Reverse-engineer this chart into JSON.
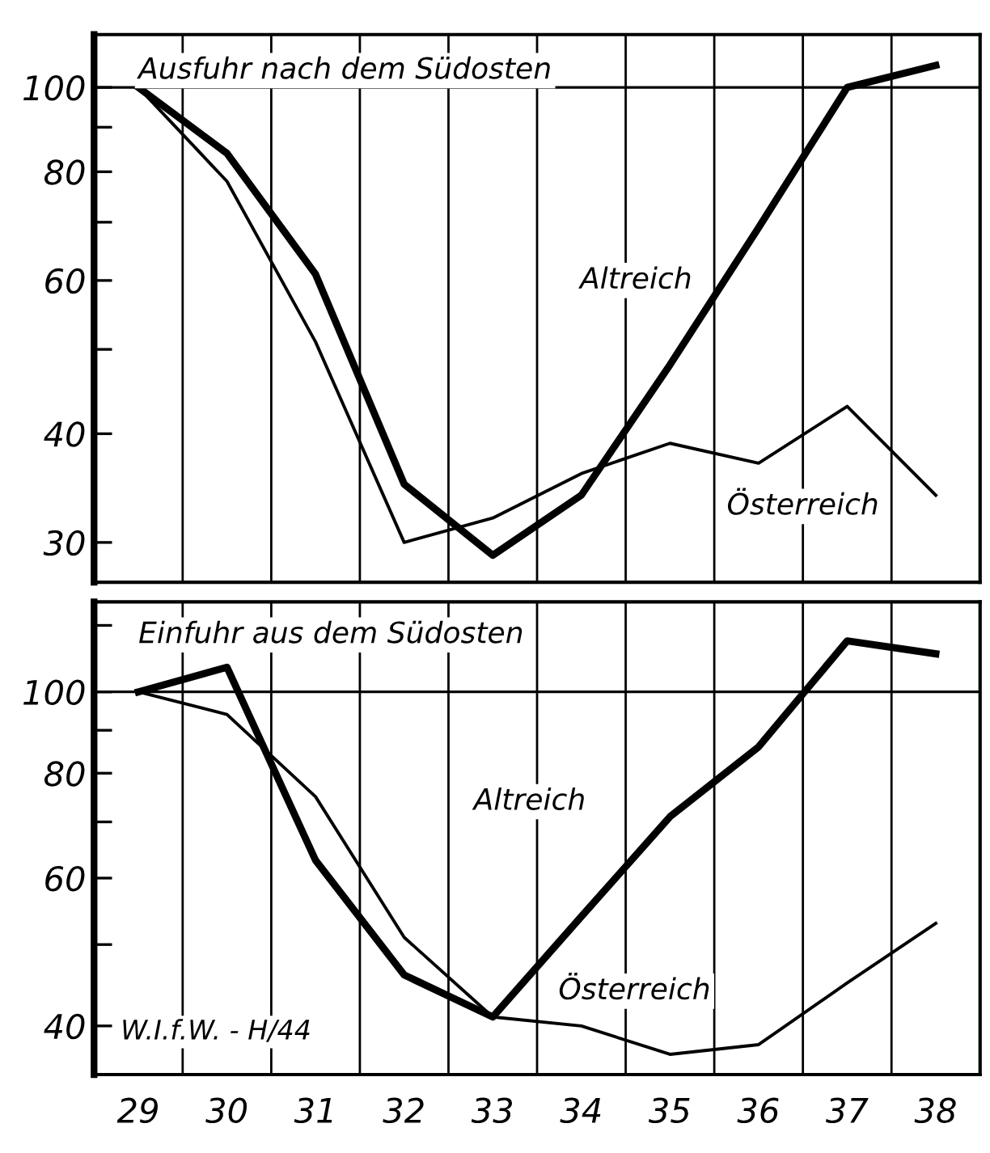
{
  "chart_data": [
    {
      "type": "line",
      "title": "Ausfuhr nach dem Südosten",
      "categories": [
        "29",
        "30",
        "31",
        "32",
        "33",
        "34",
        "35",
        "36",
        "37",
        "38"
      ],
      "log": true,
      "ylim": [
        27,
        115
      ],
      "yticks": [
        {
          "value": 30,
          "label": "30"
        },
        {
          "value": 40,
          "label": "40"
        },
        {
          "value": 50,
          "label": null
        },
        {
          "value": 60,
          "label": "60"
        },
        {
          "value": 70,
          "label": null
        },
        {
          "value": 80,
          "label": "80"
        },
        {
          "value": 90,
          "label": null
        },
        {
          "value": 100,
          "label": "100"
        }
      ],
      "tick_labels": "y",
      "grid": "x",
      "legend": false,
      "marker": "none",
      "line_style": "solid",
      "ref_lines": [
        {
          "axis": "y",
          "value": 100,
          "color": "#000000"
        }
      ],
      "series": [
        {
          "name": "Altreich",
          "color": "#000000",
          "values": [
            100,
            84,
            61,
            35,
            29,
            34,
            48,
            69,
            100,
            106
          ]
        },
        {
          "name": "Österreich",
          "color": "#000000",
          "values": [
            100,
            78,
            51,
            30,
            32,
            36,
            39,
            37,
            43,
            34
          ]
        }
      ]
    },
    {
      "type": "line",
      "title": "Einfuhr aus dem Südosten",
      "categories": [
        "29",
        "30",
        "31",
        "32",
        "33",
        "34",
        "35",
        "36",
        "37",
        "38"
      ],
      "log": true,
      "ylim": [
        35,
        128
      ],
      "yticks": [
        {
          "value": 40,
          "label": "40"
        },
        {
          "value": 50,
          "label": null
        },
        {
          "value": 60,
          "label": "60"
        },
        {
          "value": 70,
          "label": null
        },
        {
          "value": 80,
          "label": "80"
        },
        {
          "value": 90,
          "label": null
        },
        {
          "value": 100,
          "label": "100"
        },
        {
          "value": 120,
          "label": null
        }
      ],
      "grid": "x",
      "legend": false,
      "marker": "none",
      "line_style": "solid",
      "ref_lines": [
        {
          "axis": "y",
          "value": 100,
          "color": "#000000"
        }
      ],
      "annotations": [
        "W.I.f.W. - H/44"
      ],
      "series": [
        {
          "name": "Altreich",
          "color": "#000000",
          "values": [
            100,
            107,
            63,
            46,
            41,
            54,
            71,
            86,
            115,
            111
          ]
        },
        {
          "name": "Österreich",
          "color": "#000000",
          "values": [
            100,
            94,
            75,
            51,
            41,
            40,
            37,
            38,
            45,
            53
          ]
        }
      ]
    }
  ]
}
